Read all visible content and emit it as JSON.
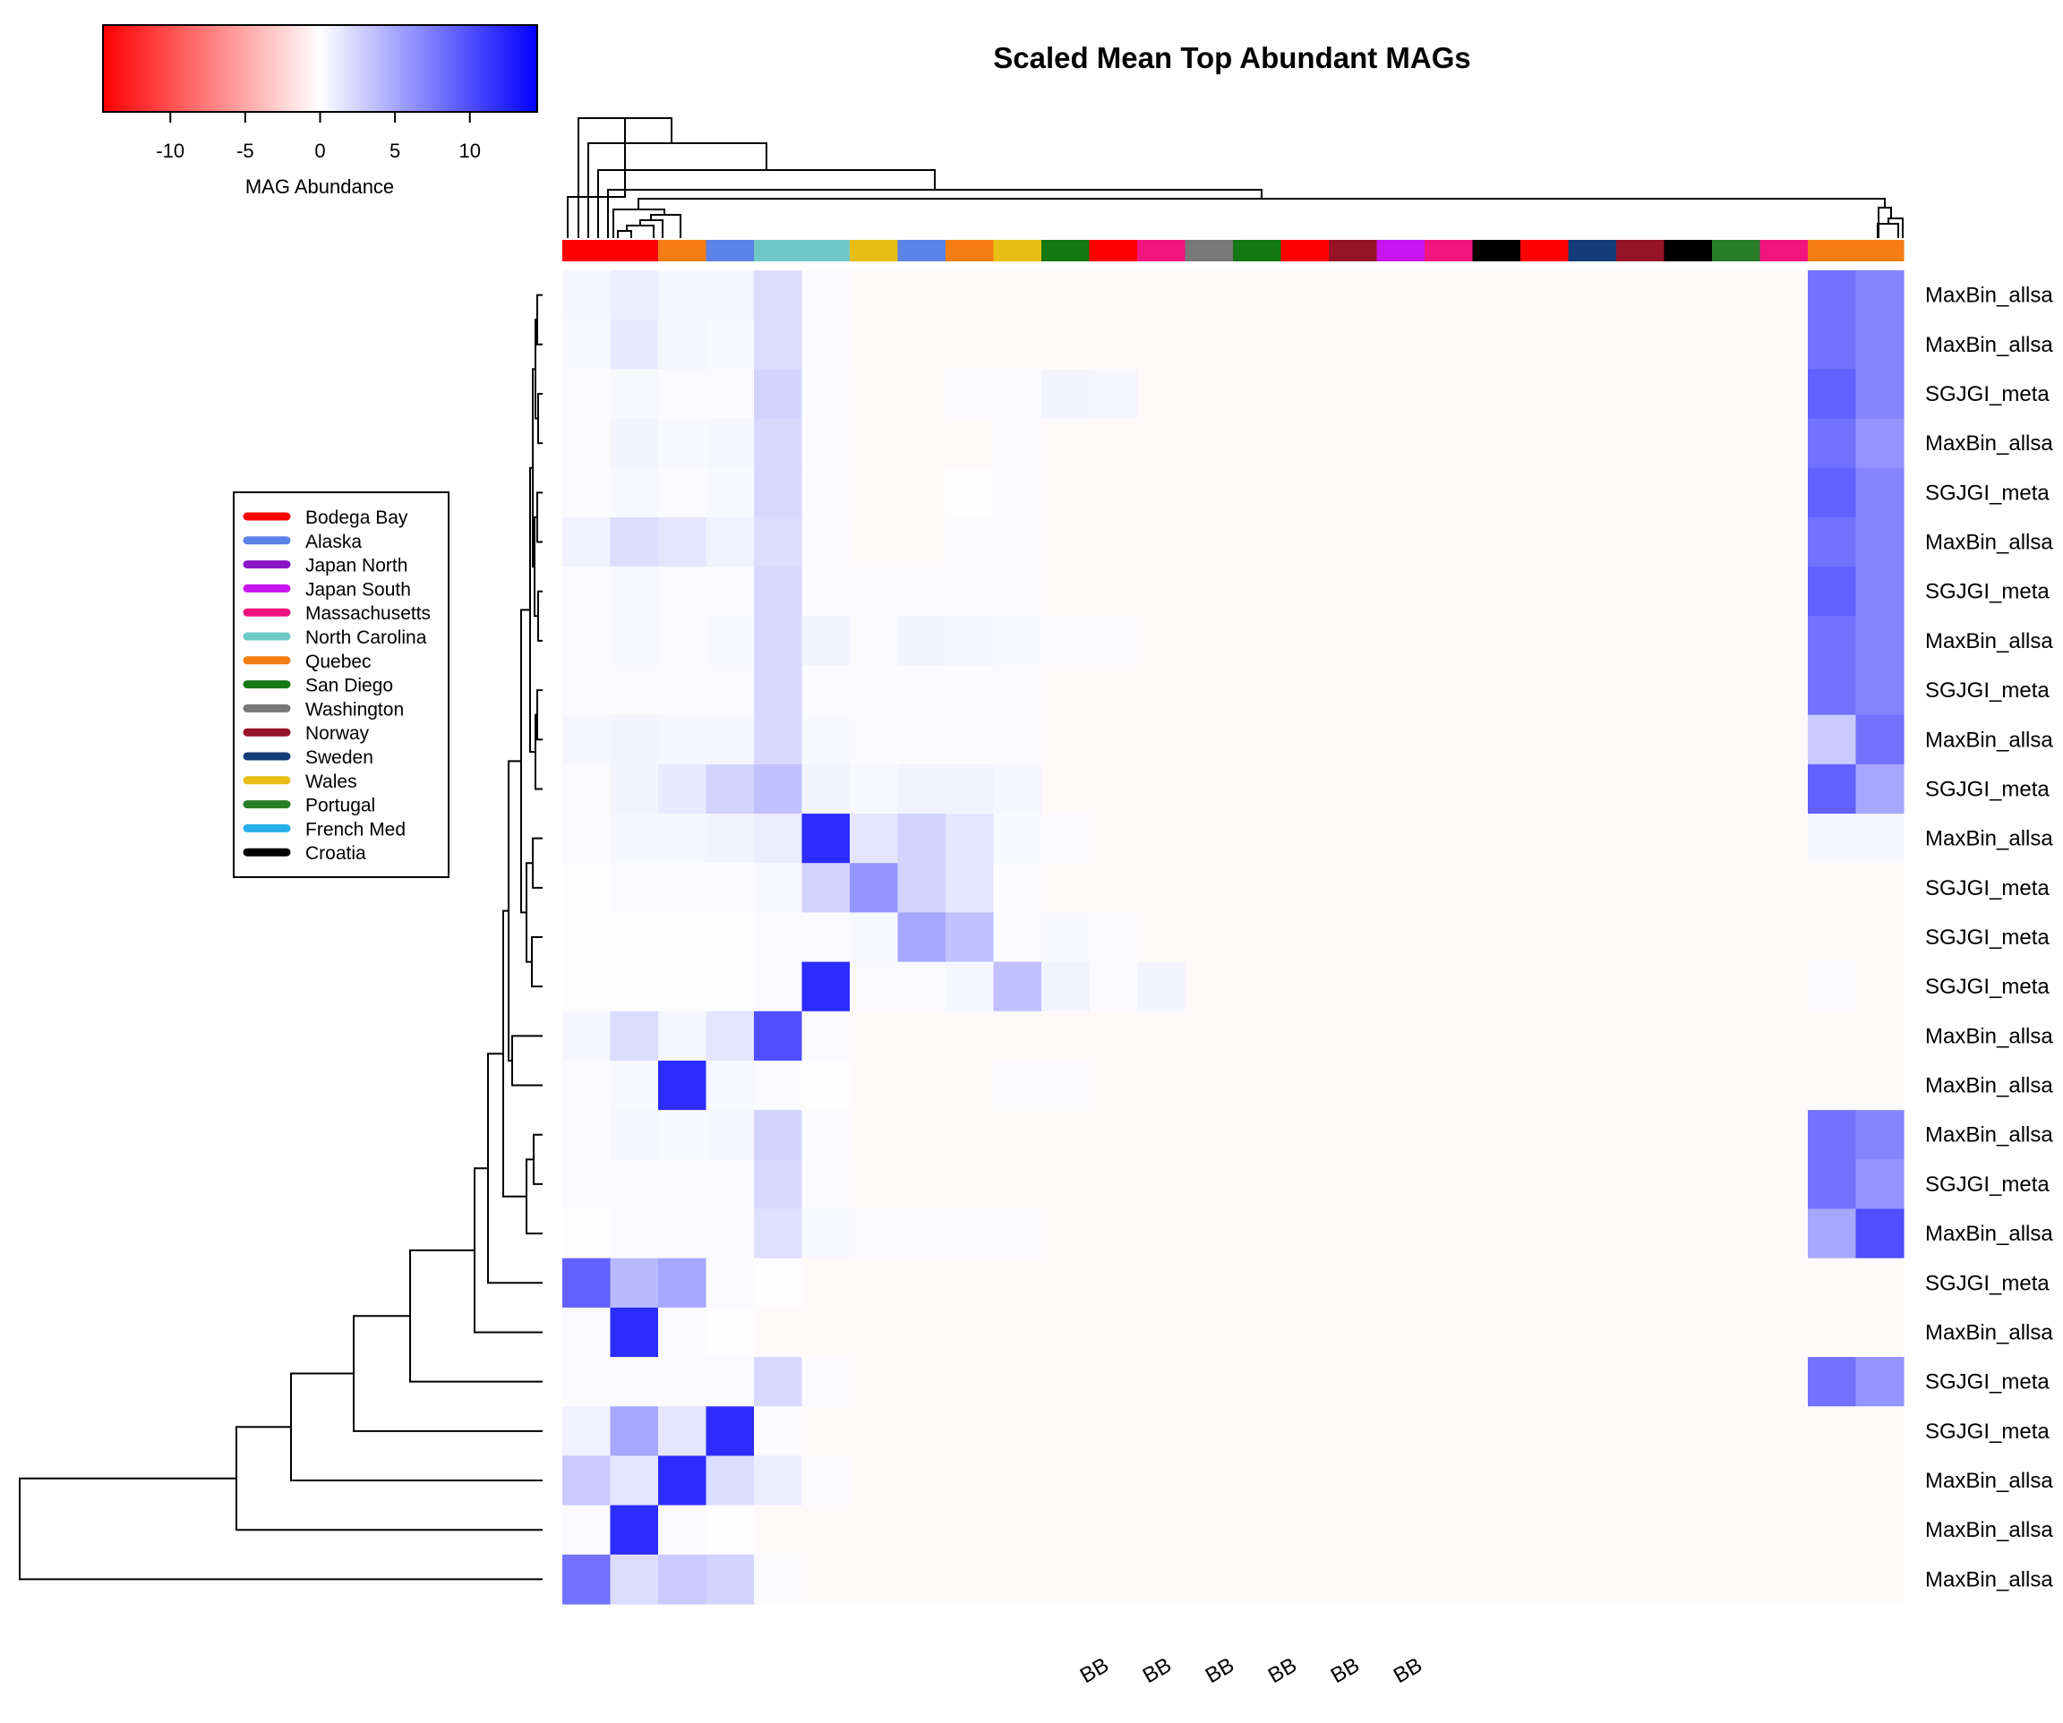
{
  "chart_data": {
    "type": "heatmap",
    "title": "Scaled Mean Top Abundant MAGs",
    "colorkey": {
      "label": "MAG Abundance",
      "ticks": [
        -10,
        -5,
        0,
        5,
        10
      ],
      "range": [
        -14.5,
        14.5
      ],
      "colors": {
        "low": "#ff0000",
        "mid": "#ffffff",
        "high": "#0000ff"
      }
    },
    "legend": {
      "placement": "left",
      "items": [
        {
          "label": "Bodega Bay",
          "color": "#ff0000"
        },
        {
          "label": "Alaska",
          "color": "#5b82e6"
        },
        {
          "label": "Japan North",
          "color": "#8a14c8"
        },
        {
          "label": "Japan South",
          "color": "#c814f0"
        },
        {
          "label": "Massachusetts",
          "color": "#f0147f"
        },
        {
          "label": "North Carolina",
          "color": "#6ec8c8"
        },
        {
          "label": "Quebec",
          "color": "#f57d14"
        },
        {
          "label": "San Diego",
          "color": "#147814"
        },
        {
          "label": "Washington",
          "color": "#787878"
        },
        {
          "label": "Norway",
          "color": "#961428"
        },
        {
          "label": "Sweden",
          "color": "#143c78"
        },
        {
          "label": "Wales",
          "color": "#e6be14"
        },
        {
          "label": "Portugal",
          "color": "#287d28"
        },
        {
          "label": "French Med",
          "color": "#28afeb"
        },
        {
          "label": "Croatia",
          "color": "#000000"
        }
      ]
    },
    "rows": [
      "MaxBin_allsa",
      "MaxBin_allsa",
      "SGJGI_meta",
      "MaxBin_allsa",
      "SGJGI_meta",
      "MaxBin_allsa",
      "SGJGI_meta",
      "MaxBin_allsa",
      "SGJGI_meta",
      "MaxBin_allsa",
      "SGJGI_meta",
      "MaxBin_allsa",
      "SGJGI_meta",
      "SGJGI_meta",
      "SGJGI_meta",
      "MaxBin_allsa",
      "MaxBin_allsa",
      "MaxBin_allsa",
      "SGJGI_meta",
      "MaxBin_allsa",
      "SGJGI_meta",
      "MaxBin_allsa",
      "SGJGI_meta",
      "SGJGI_meta",
      "MaxBin_allsa",
      "MaxBin_allsa",
      "MaxBin_allsa"
    ],
    "values": [
      [
        0.5,
        1,
        0.5,
        0.5,
        2,
        0.3,
        0,
        0,
        0,
        0,
        0,
        0,
        0,
        0,
        0,
        0,
        0,
        0,
        0,
        0,
        0,
        0,
        0,
        0,
        0,
        0,
        8,
        7
      ],
      [
        0.4,
        1.2,
        0.5,
        0.4,
        2,
        0.3,
        0,
        0,
        0,
        0,
        0,
        0,
        0,
        0,
        0,
        0,
        0,
        0,
        0,
        0,
        0,
        0,
        0,
        0,
        0,
        0,
        8,
        7
      ],
      [
        0.2,
        0.4,
        0.3,
        0.3,
        2.5,
        0.2,
        0,
        0,
        0.2,
        0.3,
        0.6,
        0.5,
        0,
        0,
        0,
        0,
        0,
        0,
        0,
        0,
        0,
        0,
        0,
        0,
        0,
        0,
        9,
        7
      ],
      [
        0.3,
        0.6,
        0.4,
        0.5,
        2.2,
        0.2,
        0,
        0,
        0,
        0.2,
        0,
        0,
        0,
        0,
        0,
        0,
        0,
        0,
        0,
        0,
        0,
        0,
        0,
        0,
        0,
        0,
        8,
        6
      ],
      [
        0.2,
        0.4,
        0.3,
        0.4,
        2.2,
        0.2,
        0,
        0,
        0.1,
        0.2,
        0,
        0,
        0,
        0,
        0,
        0,
        0,
        0,
        0,
        0,
        0,
        0,
        0,
        0,
        0,
        0,
        9,
        7
      ],
      [
        0.8,
        2,
        1.5,
        0.8,
        2,
        0.3,
        0,
        0,
        0.2,
        0.3,
        0,
        0,
        0,
        0,
        0,
        0,
        0,
        0,
        0,
        0,
        0,
        0,
        0,
        0,
        0,
        0,
        8,
        7
      ],
      [
        0.2,
        0.4,
        0.3,
        0.3,
        2.3,
        0.2,
        0.2,
        0.3,
        0.3,
        0.3,
        0,
        0,
        0,
        0,
        0,
        0,
        0,
        0,
        0,
        0,
        0,
        0,
        0,
        0,
        0,
        0,
        9,
        7
      ],
      [
        0.2,
        0.4,
        0.3,
        0.4,
        2.2,
        0.6,
        0.3,
        0.6,
        0.5,
        0.4,
        0.2,
        0.2,
        0,
        0,
        0,
        0,
        0,
        0,
        0,
        0,
        0,
        0,
        0,
        0,
        0,
        0,
        8,
        7
      ],
      [
        0.2,
        0.3,
        0.3,
        0.3,
        2.2,
        0.3,
        0.2,
        0.2,
        0.2,
        0.2,
        0,
        0,
        0,
        0,
        0,
        0,
        0,
        0,
        0,
        0,
        0,
        0,
        0,
        0,
        0,
        0,
        8,
        7
      ],
      [
        0.5,
        0.6,
        0.5,
        0.5,
        2.2,
        0.4,
        0.2,
        0.2,
        0.3,
        0.2,
        0,
        0,
        0,
        0,
        0,
        0,
        0,
        0,
        0,
        0,
        0,
        0,
        0,
        0,
        0,
        0,
        3,
        8
      ],
      [
        0.3,
        0.6,
        1.2,
        2.5,
        3.5,
        0.6,
        0.4,
        0.7,
        0.7,
        0.5,
        0,
        0,
        0,
        0,
        0,
        0,
        0,
        0,
        0,
        0,
        0,
        0,
        0,
        0,
        0,
        0,
        9,
        5
      ],
      [
        0.3,
        0.5,
        0.5,
        0.6,
        1,
        12,
        1.5,
        2.5,
        1.5,
        0.4,
        0.2,
        0,
        0,
        0,
        0,
        0,
        0,
        0,
        0,
        0,
        0,
        0,
        0,
        0,
        0,
        0,
        0.5,
        0.5
      ],
      [
        0.1,
        0.2,
        0.2,
        0.2,
        0.4,
        2.5,
        6,
        2.5,
        1.5,
        0.2,
        0,
        0,
        0,
        0,
        0,
        0,
        0,
        0,
        0,
        0,
        0,
        0,
        0,
        0,
        0,
        0,
        0,
        0
      ],
      [
        0.1,
        0.1,
        0.1,
        0.1,
        0.2,
        0.3,
        0.4,
        5,
        3.5,
        0.3,
        0.4,
        0.2,
        0,
        0,
        0,
        0,
        0,
        0,
        0,
        0,
        0,
        0,
        0,
        0,
        0,
        0,
        0,
        0
      ],
      [
        0.1,
        0.1,
        0.1,
        0.1,
        0.2,
        12,
        0.3,
        0.3,
        0.5,
        3.5,
        0.7,
        0.3,
        0.6,
        0,
        0,
        0,
        0,
        0,
        0,
        0,
        0,
        0,
        0,
        0,
        0,
        0,
        0.3,
        0
      ],
      [
        0.5,
        2,
        0.5,
        1.5,
        10,
        0.2,
        0,
        0,
        0,
        0,
        0,
        0,
        0,
        0,
        0,
        0,
        0,
        0,
        0,
        0,
        0,
        0,
        0,
        0,
        0,
        0,
        0,
        0
      ],
      [
        0.2,
        0.4,
        12,
        0.4,
        0.2,
        0.1,
        0,
        0,
        0,
        0.2,
        0.2,
        0,
        0,
        0,
        0,
        0,
        0,
        0,
        0,
        0,
        0,
        0,
        0,
        0,
        0,
        0,
        0,
        0
      ],
      [
        0.3,
        0.5,
        0.4,
        0.5,
        2.5,
        0.3,
        0,
        0,
        0,
        0,
        0,
        0,
        0,
        0,
        0,
        0,
        0,
        0,
        0,
        0,
        0,
        0,
        0,
        0,
        0,
        0,
        8,
        7
      ],
      [
        0.2,
        0.3,
        0.3,
        0.3,
        2.2,
        0.2,
        0,
        0,
        0,
        0,
        0,
        0,
        0,
        0,
        0,
        0,
        0,
        0,
        0,
        0,
        0,
        0,
        0,
        0,
        0,
        0,
        8,
        6
      ],
      [
        0.1,
        0.2,
        0.2,
        0.2,
        1.8,
        0.4,
        0.2,
        0.3,
        0.3,
        0.2,
        0,
        0,
        0,
        0,
        0,
        0,
        0,
        0,
        0,
        0,
        0,
        0,
        0,
        0,
        0,
        0,
        5,
        10
      ],
      [
        9,
        4,
        5,
        0.3,
        0.1,
        0,
        0,
        0,
        0,
        0,
        0,
        0,
        0,
        0,
        0,
        0,
        0,
        0,
        0,
        0,
        0,
        0,
        0,
        0,
        0,
        0,
        0,
        0
      ],
      [
        0.2,
        12,
        0.2,
        0.1,
        0,
        0,
        0,
        0,
        0,
        0,
        0,
        0,
        0,
        0,
        0,
        0,
        0,
        0,
        0,
        0,
        0,
        0,
        0,
        0,
        0,
        0,
        0,
        0
      ],
      [
        0.2,
        0.3,
        0.3,
        0.3,
        2.2,
        0.2,
        0,
        0,
        0,
        0,
        0,
        0,
        0,
        0,
        0,
        0,
        0,
        0,
        0,
        0,
        0,
        0,
        0,
        0,
        0,
        0,
        8,
        6
      ],
      [
        0.8,
        5,
        1.5,
        12,
        0.3,
        0,
        0,
        0,
        0,
        0,
        0,
        0,
        0,
        0,
        0,
        0,
        0,
        0,
        0,
        0,
        0,
        0,
        0,
        0,
        0,
        0,
        0,
        0
      ],
      [
        3,
        1.5,
        12,
        2,
        1,
        0.3,
        0,
        0,
        0,
        0,
        0,
        0,
        0,
        0,
        0,
        0,
        0,
        0,
        0,
        0,
        0,
        0,
        0,
        0,
        0,
        0,
        0,
        0
      ],
      [
        0.3,
        12,
        0.3,
        0.1,
        0,
        0,
        0,
        0,
        0,
        0,
        0,
        0,
        0,
        0,
        0,
        0,
        0,
        0,
        0,
        0,
        0,
        0,
        0,
        0,
        0,
        0,
        0,
        0
      ],
      [
        8,
        2,
        3,
        2.5,
        0.3,
        0,
        0,
        0,
        0,
        0,
        0,
        0,
        0,
        0,
        0,
        0,
        0,
        0,
        0,
        0,
        0,
        0,
        0,
        0,
        0,
        0,
        0,
        0
      ]
    ],
    "column_groups": [
      "Bodega Bay",
      "Bodega Bay",
      "Quebec",
      "Alaska",
      "North Carolina",
      "North Carolina",
      "Wales",
      "Alaska",
      "Quebec",
      "Wales",
      "San Diego",
      "Bodega Bay",
      "Massachusetts",
      "Washington",
      "San Diego",
      "Bodega Bay",
      "Norway",
      "Japan South",
      "Massachusetts",
      "Croatia",
      "Bodega Bay",
      "Sweden",
      "Norway",
      "Croatia",
      "Portugal",
      "Massachusetts",
      "Quebec",
      "Quebec"
    ],
    "x_tick_labels": [
      "BB",
      "BB",
      "BB",
      "BB",
      "BB",
      "BB"
    ]
  }
}
